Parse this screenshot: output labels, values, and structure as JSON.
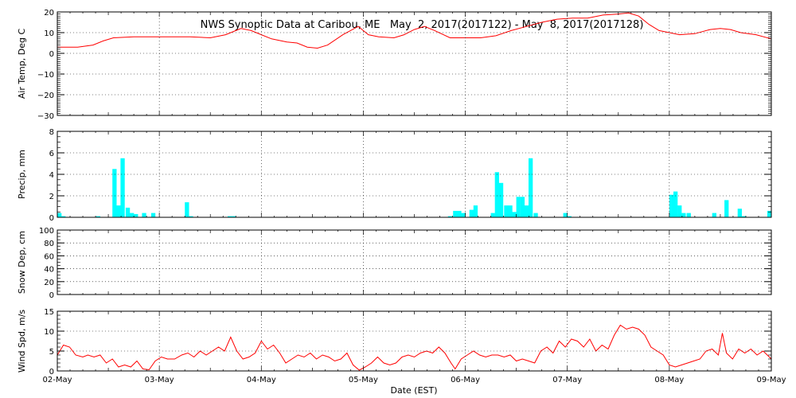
{
  "chart_data": {
    "type": "multi-panel time series",
    "title": "NWS Synoptic Data at Caribou, ME   May  2, 2017(2017122) - May  8, 2017(2017128)",
    "xlabel": "Date (EST)",
    "x_ticks": [
      "02-May",
      "03-May",
      "04-May",
      "05-May",
      "06-May",
      "07-May",
      "08-May",
      "09-May"
    ],
    "x_range_days": [
      0,
      7
    ],
    "x_unit": "days since 02-May 00:00 EST",
    "grid": "dotted vertical lines at each day; dotted horizontal lines at major y ticks",
    "colors": {
      "temp": "#ff0000",
      "precip": "#00ffff",
      "wind": "#ff0000",
      "grid": "#000000"
    },
    "panels": [
      {
        "id": "temp",
        "type": "line",
        "ylabel": "Air Temp, Deg C",
        "ylim": [
          -30,
          20
        ],
        "y_ticks": [
          -30,
          -20,
          -10,
          0,
          10,
          20
        ],
        "y_tick_labels": [
          "−30",
          "−20",
          "−10",
          "0",
          "10",
          "20"
        ],
        "series": [
          {
            "points": [
              [
                0.0,
                3
              ],
              [
                0.2,
                3
              ],
              [
                0.35,
                4
              ],
              [
                0.45,
                6
              ],
              [
                0.55,
                7.5
              ],
              [
                0.75,
                8
              ],
              [
                1.0,
                8
              ],
              [
                1.3,
                8
              ],
              [
                1.5,
                7.5
              ],
              [
                1.65,
                9
              ],
              [
                1.8,
                12
              ],
              [
                1.9,
                11
              ],
              [
                2.0,
                9
              ],
              [
                2.1,
                7
              ],
              [
                2.25,
                5.5
              ],
              [
                2.35,
                5
              ],
              [
                2.45,
                3
              ],
              [
                2.55,
                2.5
              ],
              [
                2.65,
                4
              ],
              [
                2.8,
                9
              ],
              [
                2.95,
                13
              ],
              [
                3.0,
                11
              ],
              [
                3.05,
                9
              ],
              [
                3.15,
                8
              ],
              [
                3.3,
                7.5
              ],
              [
                3.4,
                9
              ],
              [
                3.5,
                11.5
              ],
              [
                3.6,
                13
              ],
              [
                3.7,
                11
              ],
              [
                3.85,
                7.5
              ],
              [
                4.0,
                7.5
              ],
              [
                4.15,
                7.5
              ],
              [
                4.3,
                8.5
              ],
              [
                4.45,
                11
              ],
              [
                4.6,
                13
              ],
              [
                4.75,
                15
              ],
              [
                4.9,
                16.5
              ],
              [
                5.05,
                17
              ],
              [
                5.2,
                17
              ],
              [
                5.35,
                18.5
              ],
              [
                5.5,
                19
              ],
              [
                5.6,
                19.5
              ],
              [
                5.7,
                18
              ],
              [
                5.8,
                14
              ],
              [
                5.9,
                11
              ],
              [
                6.0,
                10
              ],
              [
                6.1,
                9
              ],
              [
                6.25,
                9.5
              ],
              [
                6.4,
                11.5
              ],
              [
                6.5,
                12
              ],
              [
                6.6,
                11.5
              ],
              [
                6.7,
                10
              ],
              [
                6.85,
                9
              ],
              [
                7.0,
                7
              ]
            ]
          }
        ]
      },
      {
        "id": "precip",
        "type": "bar",
        "ylabel": "Precip, mm",
        "ylim": [
          0,
          8
        ],
        "y_ticks": [
          0,
          2,
          4,
          6,
          8
        ],
        "y_tick_labels": [
          "0",
          "2",
          "4",
          "6",
          "8"
        ],
        "bar_width_days": 0.04167,
        "series": [
          {
            "points": [
              [
                0.0,
                0.4
              ],
              [
                0.04,
                0.1
              ],
              [
                0.38,
                0.1
              ],
              [
                0.54,
                4.5
              ],
              [
                0.58,
                1.1
              ],
              [
                0.62,
                5.5
              ],
              [
                0.67,
                0.9
              ],
              [
                0.71,
                0.4
              ],
              [
                0.75,
                0.3
              ],
              [
                0.83,
                0.4
              ],
              [
                0.92,
                0.4
              ],
              [
                1.25,
                1.4
              ],
              [
                1.29,
                0.1
              ],
              [
                1.67,
                0.1
              ],
              [
                1.71,
                0.1
              ],
              [
                3.83,
                0.1
              ],
              [
                3.88,
                0.6
              ],
              [
                3.92,
                0.6
              ],
              [
                3.96,
                0.4
              ],
              [
                4.04,
                0.7
              ],
              [
                4.08,
                1.1
              ],
              [
                4.25,
                0.4
              ],
              [
                4.29,
                4.2
              ],
              [
                4.33,
                3.2
              ],
              [
                4.38,
                1.1
              ],
              [
                4.42,
                1.1
              ],
              [
                4.46,
                0.5
              ],
              [
                4.5,
                1.9
              ],
              [
                4.54,
                1.9
              ],
              [
                4.58,
                1.1
              ],
              [
                4.62,
                5.5
              ],
              [
                4.67,
                0.4
              ],
              [
                4.96,
                0.4
              ],
              [
                5.0,
                0.1
              ],
              [
                6.0,
                2.1
              ],
              [
                6.04,
                2.4
              ],
              [
                6.08,
                1.1
              ],
              [
                6.12,
                0.4
              ],
              [
                6.17,
                0.4
              ],
              [
                6.42,
                0.4
              ],
              [
                6.54,
                1.6
              ],
              [
                6.67,
                0.8
              ],
              [
                6.71,
                0.1
              ],
              [
                6.96,
                0.6
              ]
            ]
          }
        ]
      },
      {
        "id": "snow",
        "type": "line",
        "ylabel": "Snow Dep, cm",
        "ylim": [
          0,
          100
        ],
        "y_ticks": [
          0,
          20,
          40,
          60,
          80,
          100
        ],
        "y_tick_labels": [
          "0",
          "20",
          "40",
          "60",
          "80",
          "100"
        ],
        "series": [
          {
            "points": []
          }
        ]
      },
      {
        "id": "wind",
        "type": "line",
        "ylabel": "Wind Spd, m/s",
        "ylim": [
          0,
          15
        ],
        "y_ticks": [
          0,
          5,
          10,
          15
        ],
        "y_tick_labels": [
          "0",
          "5",
          "10",
          "15"
        ],
        "series": [
          {
            "points": [
              [
                0.0,
                4
              ],
              [
                0.06,
                6.5
              ],
              [
                0.12,
                6
              ],
              [
                0.18,
                4
              ],
              [
                0.25,
                3.5
              ],
              [
                0.3,
                4
              ],
              [
                0.36,
                3.5
              ],
              [
                0.42,
                4
              ],
              [
                0.48,
                2
              ],
              [
                0.54,
                3
              ],
              [
                0.6,
                1
              ],
              [
                0.66,
                1.5
              ],
              [
                0.72,
                1
              ],
              [
                0.78,
                2.5
              ],
              [
                0.84,
                0.5
              ],
              [
                0.9,
                0.3
              ],
              [
                0.96,
                2.5
              ],
              [
                1.02,
                3.5
              ],
              [
                1.08,
                3
              ],
              [
                1.15,
                3
              ],
              [
                1.22,
                4
              ],
              [
                1.28,
                4.5
              ],
              [
                1.34,
                3.5
              ],
              [
                1.4,
                5
              ],
              [
                1.46,
                4
              ],
              [
                1.52,
                5
              ],
              [
                1.58,
                6
              ],
              [
                1.64,
                5
              ],
              [
                1.7,
                8.5
              ],
              [
                1.76,
                5
              ],
              [
                1.82,
                3
              ],
              [
                1.88,
                3.5
              ],
              [
                1.94,
                4.5
              ],
              [
                2.0,
                7.5
              ],
              [
                2.06,
                5.5
              ],
              [
                2.12,
                6.5
              ],
              [
                2.18,
                4.5
              ],
              [
                2.24,
                2
              ],
              [
                2.3,
                3
              ],
              [
                2.36,
                4
              ],
              [
                2.42,
                3.5
              ],
              [
                2.48,
                4.5
              ],
              [
                2.54,
                3
              ],
              [
                2.6,
                4
              ],
              [
                2.66,
                3.5
              ],
              [
                2.72,
                2.5
              ],
              [
                2.78,
                3
              ],
              [
                2.84,
                4.5
              ],
              [
                2.9,
                1.5
              ],
              [
                2.96,
                0.2
              ],
              [
                3.02,
                1
              ],
              [
                3.08,
                2
              ],
              [
                3.14,
                3.5
              ],
              [
                3.2,
                2
              ],
              [
                3.26,
                1.5
              ],
              [
                3.32,
                2
              ],
              [
                3.38,
                3.5
              ],
              [
                3.44,
                4
              ],
              [
                3.5,
                3.5
              ],
              [
                3.56,
                4.5
              ],
              [
                3.62,
                5
              ],
              [
                3.68,
                4.5
              ],
              [
                3.74,
                6
              ],
              [
                3.8,
                4.5
              ],
              [
                3.86,
                2
              ],
              [
                3.9,
                0.5
              ],
              [
                3.96,
                3
              ],
              [
                4.02,
                4
              ],
              [
                4.08,
                5
              ],
              [
                4.14,
                4
              ],
              [
                4.2,
                3.5
              ],
              [
                4.26,
                4
              ],
              [
                4.32,
                4
              ],
              [
                4.38,
                3.5
              ],
              [
                4.44,
                4
              ],
              [
                4.5,
                2.5
              ],
              [
                4.56,
                3
              ],
              [
                4.62,
                2.5
              ],
              [
                4.68,
                2
              ],
              [
                4.74,
                5
              ],
              [
                4.8,
                6
              ],
              [
                4.86,
                4.5
              ],
              [
                4.92,
                7.5
              ],
              [
                4.98,
                6
              ],
              [
                5.04,
                8
              ],
              [
                5.1,
                7.5
              ],
              [
                5.16,
                6
              ],
              [
                5.22,
                8
              ],
              [
                5.28,
                5
              ],
              [
                5.34,
                6.5
              ],
              [
                5.4,
                5.5
              ],
              [
                5.46,
                9
              ],
              [
                5.52,
                11.5
              ],
              [
                5.58,
                10.5
              ],
              [
                5.64,
                11
              ],
              [
                5.7,
                10.5
              ],
              [
                5.76,
                9
              ],
              [
                5.82,
                6
              ],
              [
                5.88,
                5
              ],
              [
                5.94,
                4
              ],
              [
                6.0,
                1.5
              ],
              [
                6.06,
                1
              ],
              [
                6.12,
                1.5
              ],
              [
                6.18,
                2
              ],
              [
                6.24,
                2.5
              ],
              [
                6.3,
                3
              ],
              [
                6.36,
                5
              ],
              [
                6.42,
                5.5
              ],
              [
                6.48,
                4
              ],
              [
                6.52,
                9.5
              ],
              [
                6.56,
                4.5
              ],
              [
                6.62,
                3
              ],
              [
                6.68,
                5.5
              ],
              [
                6.74,
                4.5
              ],
              [
                6.8,
                5.5
              ],
              [
                6.86,
                4
              ],
              [
                6.92,
                5
              ],
              [
                6.96,
                4
              ],
              [
                7.0,
                3
              ]
            ]
          }
        ]
      }
    ]
  }
}
